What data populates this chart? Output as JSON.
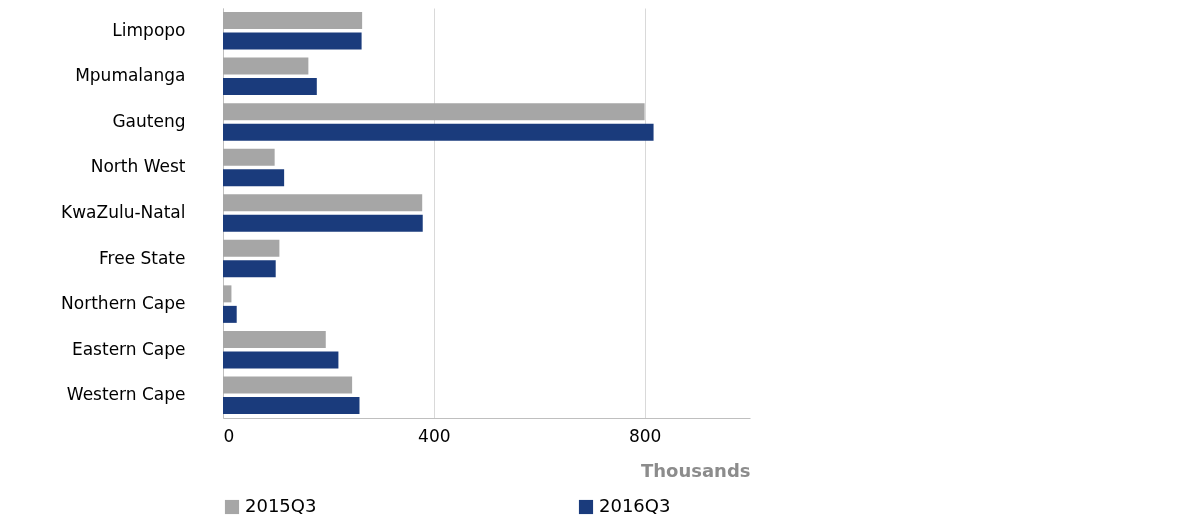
{
  "chart_data": {
    "type": "bar",
    "orientation": "horizontal",
    "xlabel": "Thousands",
    "categories": [
      "Limpopo",
      "Mpumalanga",
      "Gauteng",
      "North West",
      "KwaZulu-Natal",
      "Free State",
      "Northern Cape",
      "Eastern Cape",
      "Western Cape"
    ],
    "series": [
      {
        "name": "2015Q3",
        "color": "#a6a6a6",
        "values": [
          264,
          162,
          800,
          98,
          378,
          107,
          16,
          195,
          245
        ]
      },
      {
        "name": "2016Q3",
        "color": "#1a3b7c",
        "values": [
          263,
          178,
          817,
          116,
          379,
          100,
          26,
          219,
          259
        ]
      }
    ],
    "xlim": [
      0,
      1000
    ],
    "xticks": [
      0,
      400,
      800
    ],
    "grid": "x",
    "legend": "bottom"
  }
}
